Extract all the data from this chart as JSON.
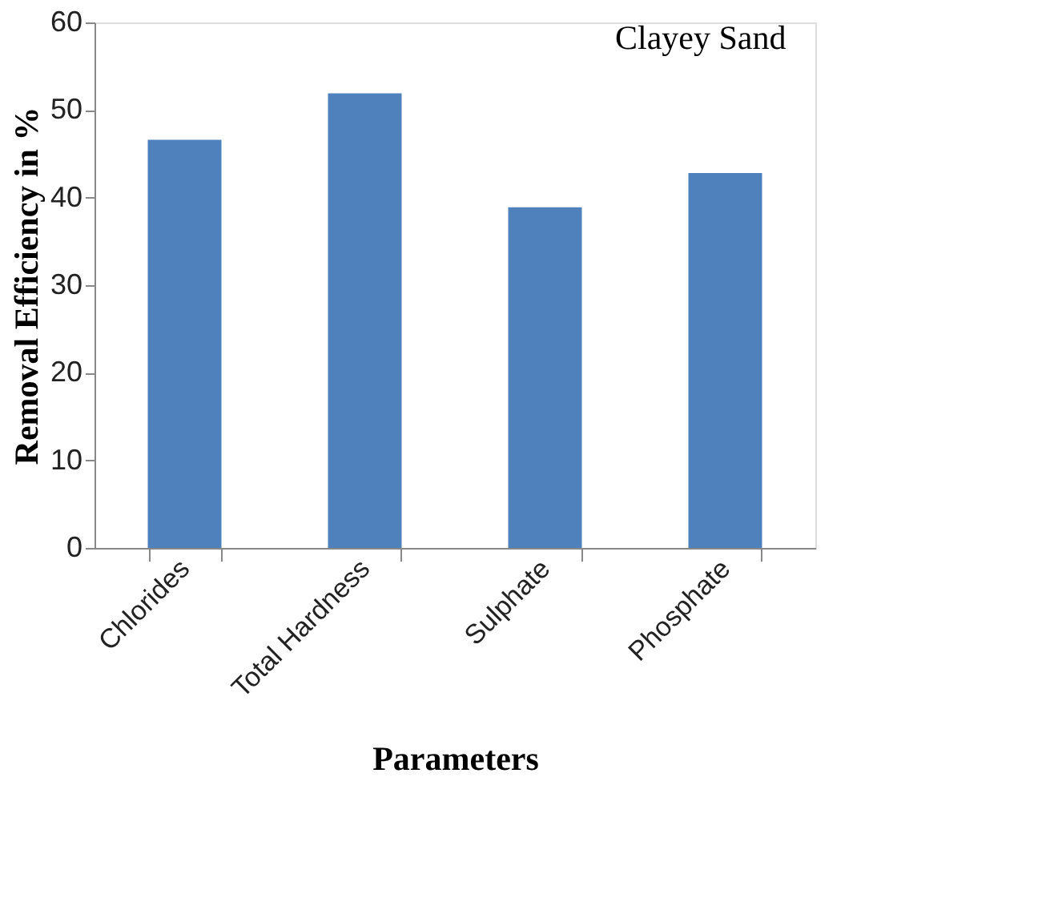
{
  "chart_data": {
    "type": "bar",
    "xlabel": "Parameters",
    "ylabel": "Removal Efficiency in %",
    "categories": [
      "Chlorides",
      "Total Hardness",
      "Sulphate",
      "Phosphate"
    ],
    "series": [
      {
        "name": "Clayey Sand",
        "color": "#4f81bd",
        "values": [
          46.6,
          51.9,
          38.9,
          42.8
        ]
      }
    ],
    "ylim": [
      0,
      60
    ],
    "yticks": [
      0,
      10,
      20,
      30,
      40,
      50,
      60
    ],
    "grid": false,
    "legend": "right"
  }
}
